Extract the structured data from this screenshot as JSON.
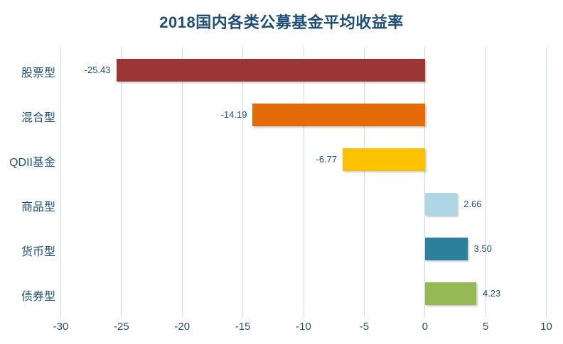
{
  "title": "2018国内各类公募基金平均收益率",
  "colors": {
    "background": "#ffffff",
    "title_text": "#1f4e79",
    "axis_text": "#1f4e79",
    "value_label_text": "#1f4e79",
    "gridline": "#c9daea"
  },
  "chart_data": {
    "type": "bar",
    "orientation": "horizontal",
    "title": "2018国内各类公募基金平均收益率",
    "categories": [
      "股票型",
      "混合型",
      "QDII基金",
      "商品型",
      "货币型",
      "债券型"
    ],
    "values": [
      -25.43,
      -14.19,
      -6.77,
      2.66,
      3.5,
      4.23
    ],
    "value_labels": [
      "-25.43",
      "-14.19",
      "-6.77",
      "2.66",
      "3.50",
      "4.23"
    ],
    "bar_colors": [
      "#9a3635",
      "#e36c09",
      "#fcc200",
      "#aed6e4",
      "#2e7f9c",
      "#95ba55"
    ],
    "xlim": [
      -30,
      10
    ],
    "x_ticks": [
      "-30",
      "-25",
      "-20",
      "-15",
      "-10",
      "-5",
      "0",
      "5",
      "10"
    ],
    "x_tick_values": [
      -30,
      -25,
      -20,
      -15,
      -10,
      -5,
      0,
      5,
      10
    ],
    "grid": "vertical-gridlines-on",
    "legend": "none",
    "value_label_position": "outside-end"
  }
}
